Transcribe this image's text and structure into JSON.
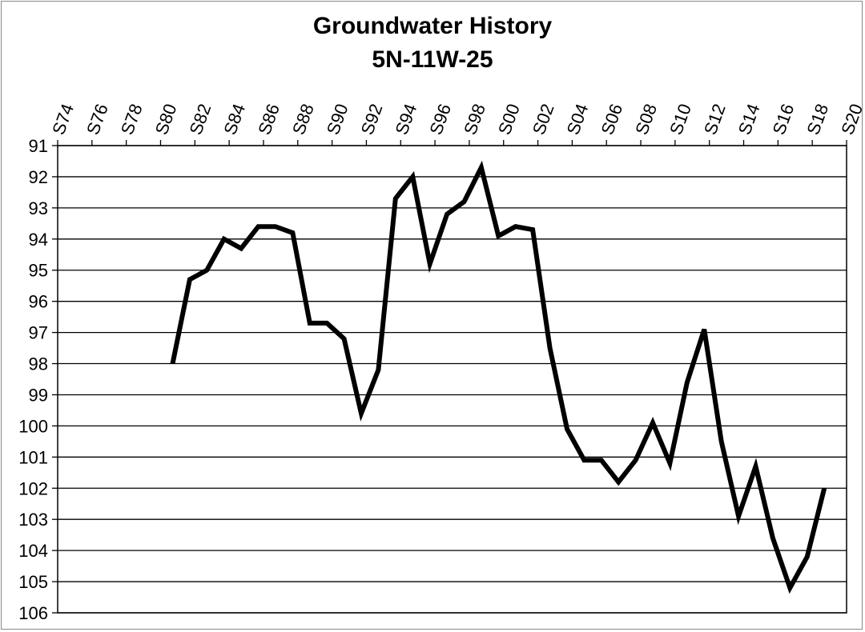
{
  "chart_data": {
    "type": "line",
    "title": "Groundwater History",
    "subtitle": "5N-11W-25",
    "xlabel": "",
    "ylabel": "",
    "x_tick_labels": [
      "S74",
      "S76",
      "S78",
      "S80",
      "S82",
      "S84",
      "S86",
      "S88",
      "S90",
      "S92",
      "S94",
      "S96",
      "S98",
      "S00",
      "S02",
      "S04",
      "S06",
      "S08",
      "S10",
      "S12",
      "S14",
      "S16",
      "S18",
      "S20"
    ],
    "y_tick_labels": [
      "91",
      "92",
      "93",
      "94",
      "95",
      "96",
      "97",
      "98",
      "99",
      "100",
      "101",
      "102",
      "103",
      "104",
      "105",
      "106"
    ],
    "xlim": [
      1974,
      2020
    ],
    "ylim": [
      91,
      106
    ],
    "y_inverted": true,
    "grid": "horizontal",
    "series": [
      {
        "points": [
          [
            1980.7,
            98.0
          ],
          [
            1981.7,
            95.3
          ],
          [
            1982.7,
            95.0
          ],
          [
            1983.7,
            94.0
          ],
          [
            1984.7,
            94.3
          ],
          [
            1985.7,
            93.6
          ],
          [
            1986.7,
            93.6
          ],
          [
            1987.7,
            93.8
          ],
          [
            1988.7,
            96.7
          ],
          [
            1989.7,
            96.7
          ],
          [
            1990.7,
            97.2
          ],
          [
            1991.7,
            99.6
          ],
          [
            1992.7,
            98.2
          ],
          [
            1993.7,
            92.7
          ],
          [
            1994.7,
            92.0
          ],
          [
            1995.7,
            94.8
          ],
          [
            1996.7,
            93.2
          ],
          [
            1997.7,
            92.8
          ],
          [
            1998.7,
            91.7
          ],
          [
            1999.7,
            93.9
          ],
          [
            2000.7,
            93.6
          ],
          [
            2001.7,
            93.7
          ],
          [
            2002.7,
            97.5
          ],
          [
            2003.7,
            100.1
          ],
          [
            2004.7,
            101.1
          ],
          [
            2005.7,
            101.1
          ],
          [
            2006.7,
            101.8
          ],
          [
            2007.7,
            101.1
          ],
          [
            2008.7,
            99.9
          ],
          [
            2009.7,
            101.2
          ],
          [
            2010.7,
            98.6
          ],
          [
            2011.7,
            96.9
          ],
          [
            2012.7,
            100.5
          ],
          [
            2013.7,
            102.9
          ],
          [
            2014.7,
            101.3
          ],
          [
            2015.7,
            103.6
          ],
          [
            2016.7,
            105.2
          ],
          [
            2017.7,
            104.2
          ],
          [
            2018.7,
            102.0
          ]
        ]
      }
    ],
    "line_color": "#000000",
    "grid_color": "#000000"
  }
}
